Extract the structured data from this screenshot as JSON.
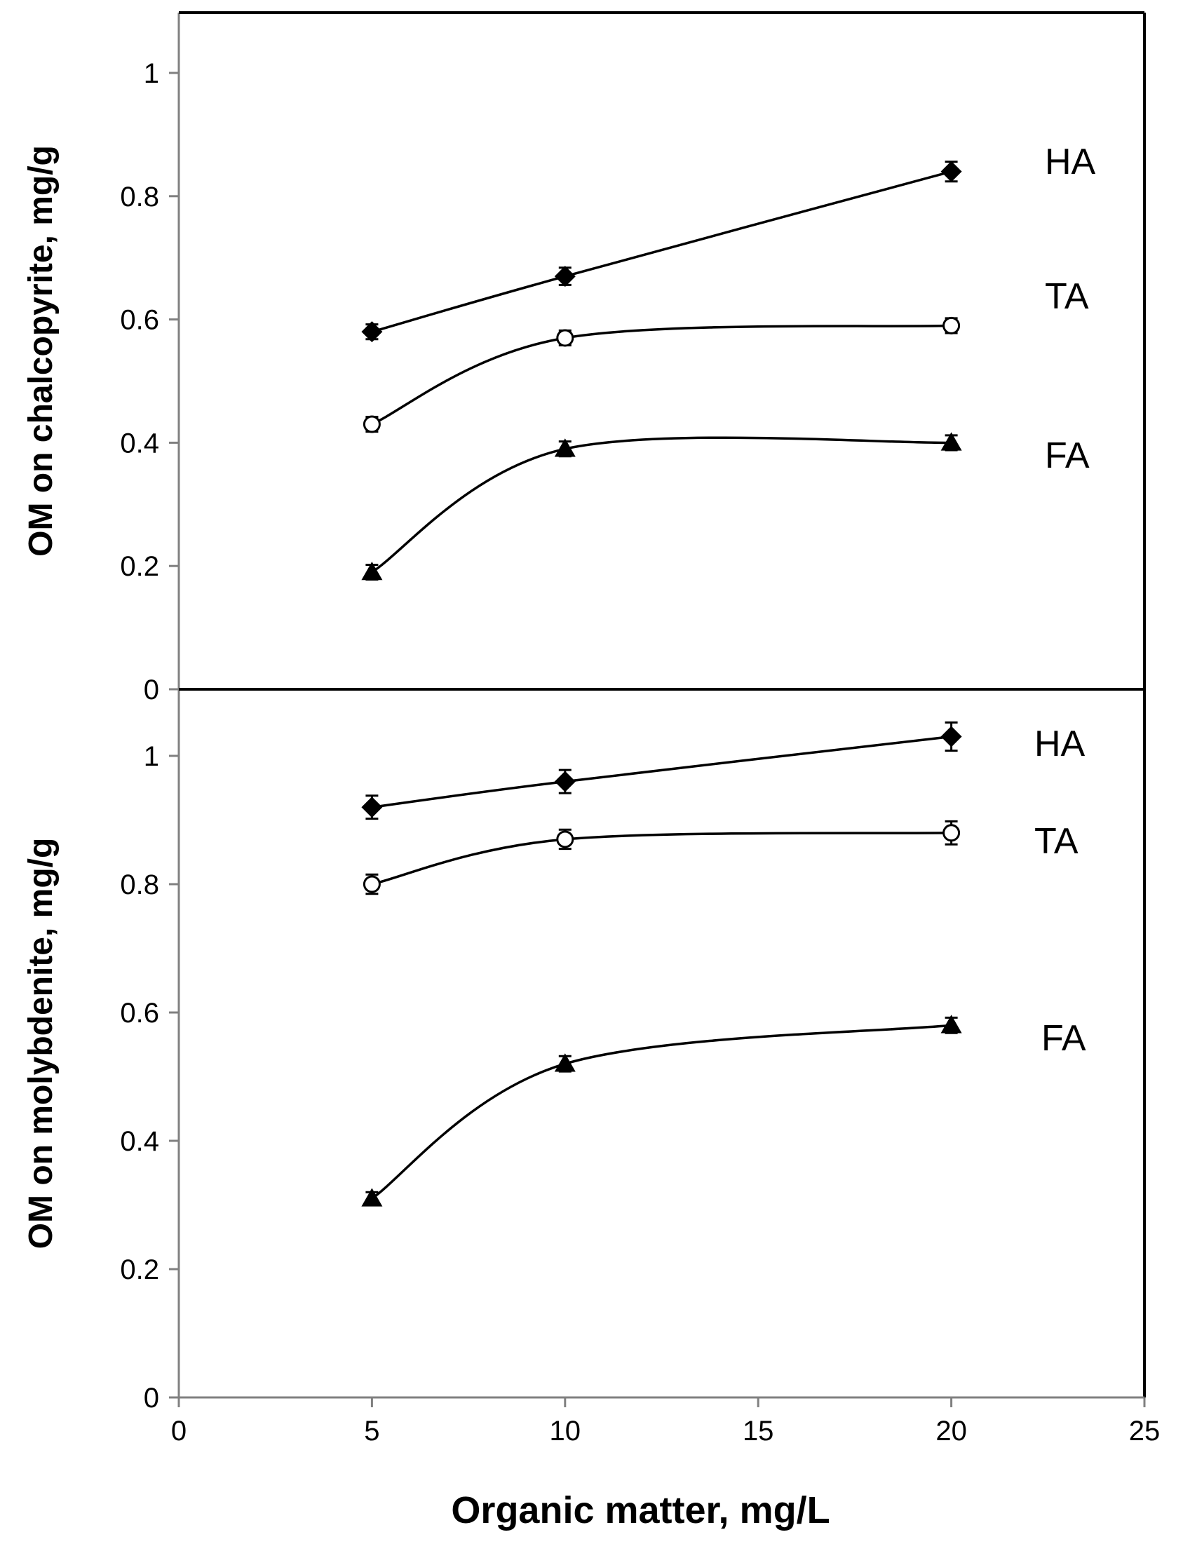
{
  "chart_data": [
    {
      "type": "line",
      "title": "",
      "xlabel": "Organic matter, mg/L",
      "ylabel": "OM on chalcopyrite, mg/g",
      "xlim": [
        0,
        25
      ],
      "ylim": [
        0,
        1.1
      ],
      "x_ticks": [
        "0",
        "5",
        "10",
        "15",
        "20",
        "25"
      ],
      "y_ticks": [
        "0",
        "0.2",
        "0.4",
        "0.6",
        "0.8",
        "1"
      ],
      "x": [
        5,
        10,
        20
      ],
      "grid": false,
      "series": [
        {
          "name": "HA",
          "marker": "diamond",
          "values": [
            0.58,
            0.67,
            0.84
          ],
          "errors": [
            0.012,
            0.014,
            0.016
          ]
        },
        {
          "name": "TA",
          "marker": "circle",
          "values": [
            0.43,
            0.57,
            0.59
          ],
          "errors": [
            0.012,
            0.012,
            0.012
          ]
        },
        {
          "name": "FA",
          "marker": "triangle",
          "values": [
            0.19,
            0.39,
            0.4
          ],
          "errors": [
            0.012,
            0.012,
            0.012
          ]
        }
      ]
    },
    {
      "type": "line",
      "title": "",
      "xlabel": "Organic matter, mg/L",
      "ylabel": "OM on molybdenite, mg/g",
      "xlim": [
        0,
        25
      ],
      "ylim": [
        0,
        1.1
      ],
      "x_ticks": [
        "0",
        "5",
        "10",
        "15",
        "20",
        "25"
      ],
      "y_ticks": [
        "0",
        "0.2",
        "0.4",
        "0.6",
        "0.8",
        "1"
      ],
      "x": [
        5,
        10,
        20
      ],
      "grid": false,
      "series": [
        {
          "name": "HA",
          "marker": "diamond",
          "values": [
            0.92,
            0.96,
            1.03
          ],
          "errors": [
            0.018,
            0.018,
            0.022
          ]
        },
        {
          "name": "TA",
          "marker": "circle",
          "values": [
            0.8,
            0.87,
            0.88
          ],
          "errors": [
            0.015,
            0.015,
            0.018
          ]
        },
        {
          "name": "FA",
          "marker": "triangle",
          "values": [
            0.31,
            0.52,
            0.58
          ],
          "errors": [
            0.01,
            0.012,
            0.012
          ]
        }
      ]
    }
  ]
}
